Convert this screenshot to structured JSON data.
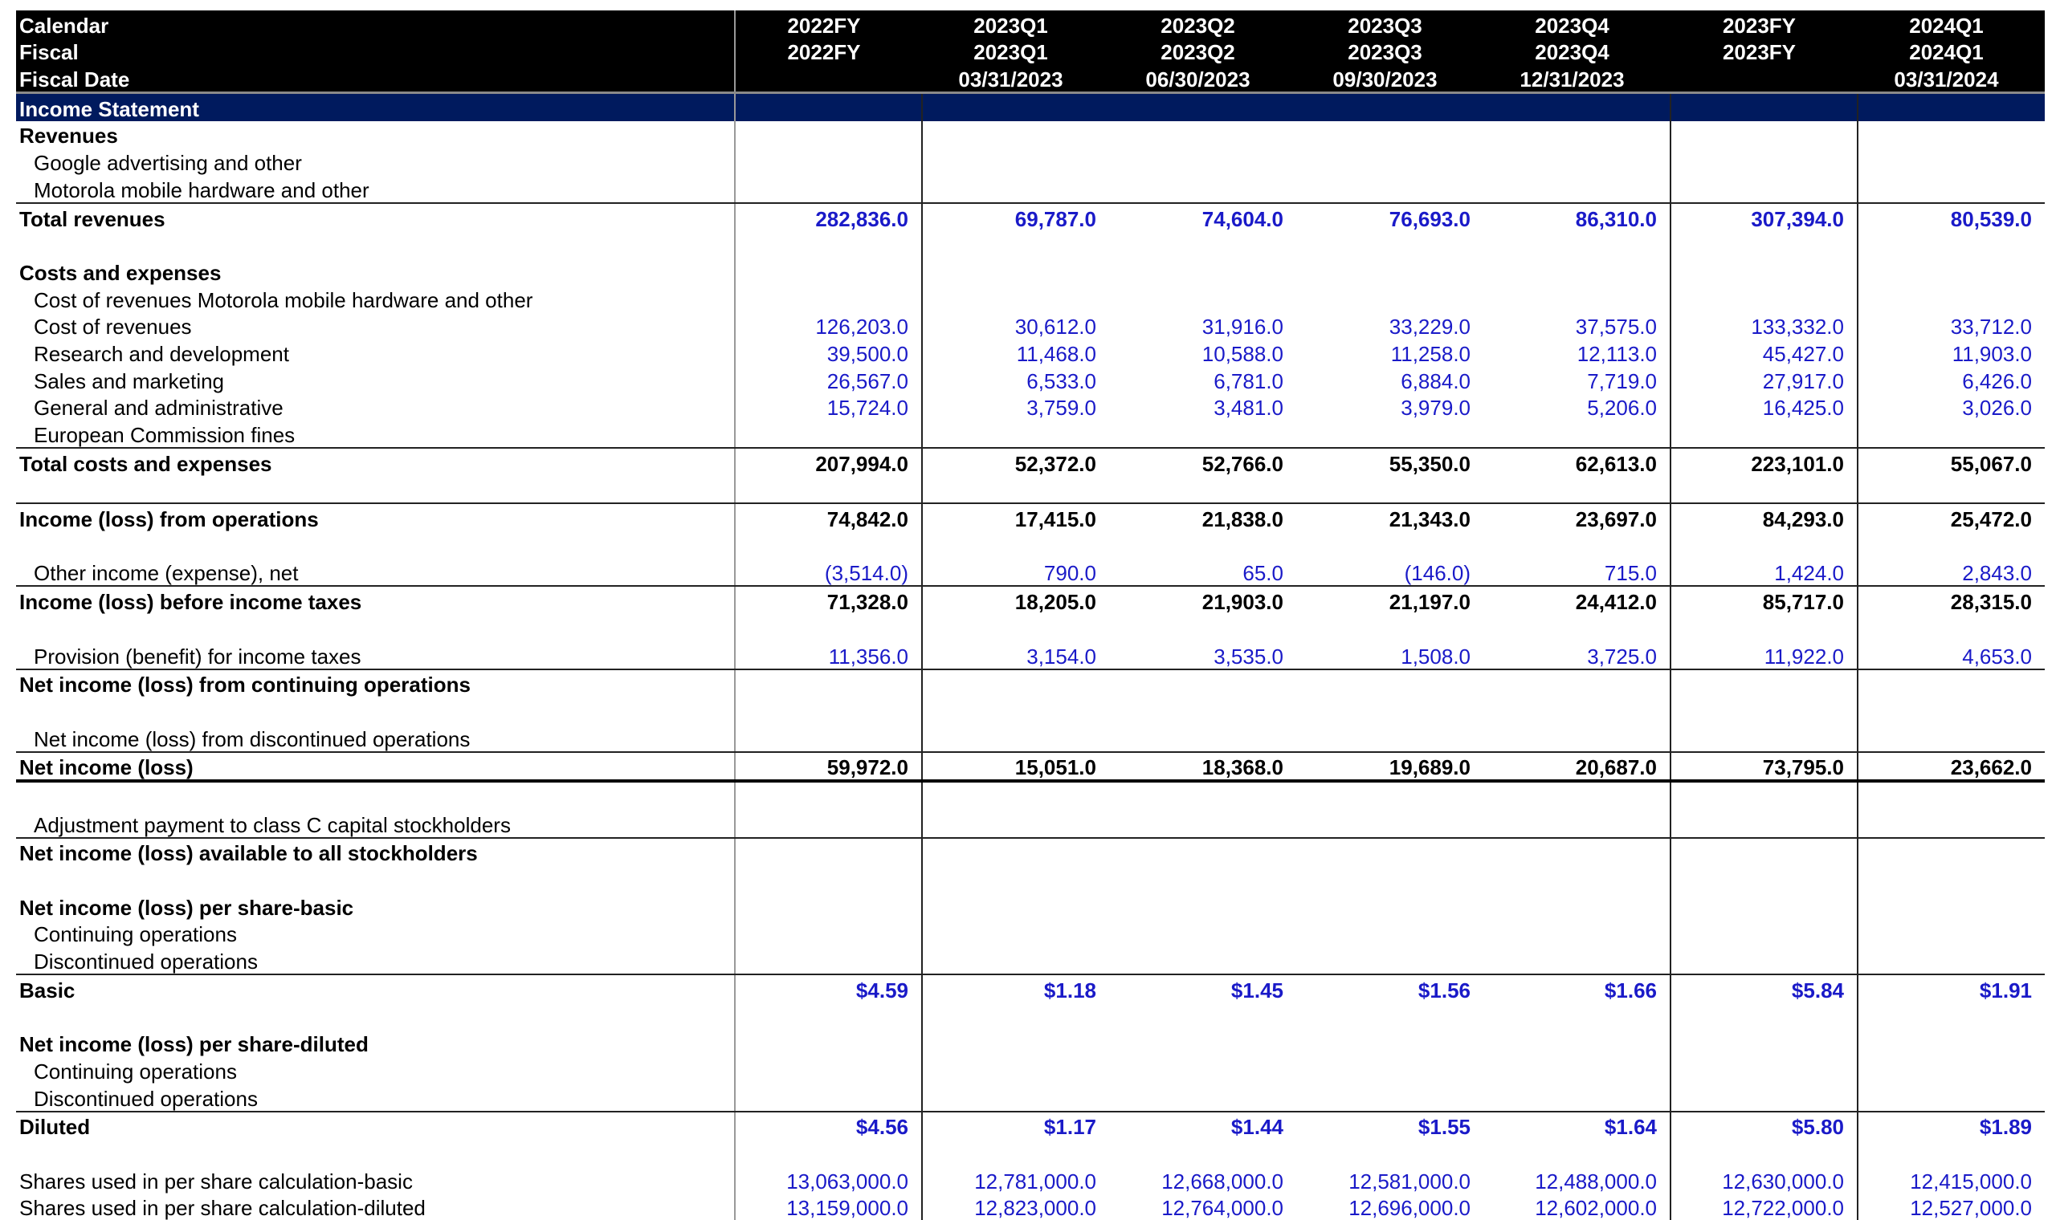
{
  "header": {
    "labels": [
      "Calendar",
      "Fiscal",
      "Fiscal Date"
    ],
    "columns": [
      {
        "calendar": "2022FY",
        "fiscal": "2022FY",
        "date": ""
      },
      {
        "calendar": "2023Q1",
        "fiscal": "2023Q1",
        "date": "03/31/2023"
      },
      {
        "calendar": "2023Q2",
        "fiscal": "2023Q2",
        "date": "06/30/2023"
      },
      {
        "calendar": "2023Q3",
        "fiscal": "2023Q3",
        "date": "09/30/2023"
      },
      {
        "calendar": "2023Q4",
        "fiscal": "2023Q4",
        "date": "12/31/2023"
      },
      {
        "calendar": "2023FY",
        "fiscal": "2023FY",
        "date": ""
      },
      {
        "calendar": "2024Q1",
        "fiscal": "2024Q1",
        "date": "03/31/2024"
      }
    ]
  },
  "section_title": "Income Statement",
  "colors": {
    "value_blue": "#1a1ac8",
    "section_bar": "#001a5e",
    "header_bg": "#000000"
  },
  "rows": [
    {
      "label": "Revenues",
      "bold": true
    },
    {
      "label": "Google advertising and other",
      "indent": true
    },
    {
      "label": "Motorola mobile hardware and other",
      "indent": true,
      "border": "thin"
    },
    {
      "label": "Total revenues",
      "bold": true,
      "style": "blue-bold",
      "values": [
        "282,836.0",
        "69,787.0",
        "74,604.0",
        "76,693.0",
        "86,310.0",
        "307,394.0",
        "80,539.0"
      ]
    },
    {
      "label": ""
    },
    {
      "label": "Costs and expenses",
      "bold": true
    },
    {
      "label": "Cost of revenues Motorola mobile hardware and other",
      "indent": true
    },
    {
      "label": "Cost of revenues",
      "indent": true,
      "style": "blue",
      "values": [
        "126,203.0",
        "30,612.0",
        "31,916.0",
        "33,229.0",
        "37,575.0",
        "133,332.0",
        "33,712.0"
      ]
    },
    {
      "label": "Research and development",
      "indent": true,
      "style": "blue",
      "values": [
        "39,500.0",
        "11,468.0",
        "10,588.0",
        "11,258.0",
        "12,113.0",
        "45,427.0",
        "11,903.0"
      ]
    },
    {
      "label": "Sales and marketing",
      "indent": true,
      "style": "blue",
      "values": [
        "26,567.0",
        "6,533.0",
        "6,781.0",
        "6,884.0",
        "7,719.0",
        "27,917.0",
        "6,426.0"
      ]
    },
    {
      "label": "General and administrative",
      "indent": true,
      "style": "blue",
      "values": [
        "15,724.0",
        "3,759.0",
        "3,481.0",
        "3,979.0",
        "5,206.0",
        "16,425.0",
        "3,026.0"
      ]
    },
    {
      "label": "European Commission fines",
      "indent": true,
      "border": "thin"
    },
    {
      "label": "Total costs and expenses",
      "bold": true,
      "style": "bold",
      "values": [
        "207,994.0",
        "52,372.0",
        "52,766.0",
        "55,350.0",
        "62,613.0",
        "223,101.0",
        "55,067.0"
      ]
    },
    {
      "label": "",
      "border": "thin"
    },
    {
      "label": "Income (loss) from operations",
      "bold": true,
      "style": "bold",
      "values": [
        "74,842.0",
        "17,415.0",
        "21,838.0",
        "21,343.0",
        "23,697.0",
        "84,293.0",
        "25,472.0"
      ]
    },
    {
      "label": ""
    },
    {
      "label": "Other income (expense), net",
      "indent": true,
      "style": "blue",
      "border": "thin",
      "values": [
        "(3,514.0)",
        "790.0",
        "65.0",
        "(146.0)",
        "715.0",
        "1,424.0",
        "2,843.0"
      ]
    },
    {
      "label": "Income (loss) before income taxes",
      "bold": true,
      "style": "bold",
      "values": [
        "71,328.0",
        "18,205.0",
        "21,903.0",
        "21,197.0",
        "24,412.0",
        "85,717.0",
        "28,315.0"
      ]
    },
    {
      "label": ""
    },
    {
      "label": "Provision (benefit) for income taxes",
      "indent": true,
      "style": "blue",
      "border": "thin",
      "values": [
        "11,356.0",
        "3,154.0",
        "3,535.0",
        "1,508.0",
        "3,725.0",
        "11,922.0",
        "4,653.0"
      ]
    },
    {
      "label": "Net income (loss) from continuing operations",
      "bold": true
    },
    {
      "label": ""
    },
    {
      "label": "Net income (loss) from discontinued operations",
      "indent": true,
      "border": "thin"
    },
    {
      "label": "Net income (loss)",
      "bold": true,
      "style": "bold",
      "border": "thick",
      "values": [
        "59,972.0",
        "15,051.0",
        "18,368.0",
        "19,689.0",
        "20,687.0",
        "73,795.0",
        "23,662.0"
      ]
    },
    {
      "label": ""
    },
    {
      "label": "Adjustment payment to class C capital stockholders",
      "indent": true,
      "border": "thin"
    },
    {
      "label": "Net income (loss) available to all stockholders",
      "bold": true
    },
    {
      "label": ""
    },
    {
      "label": "Net income (loss) per share-basic",
      "bold": true
    },
    {
      "label": "Continuing operations",
      "indent": true
    },
    {
      "label": "Discontinued operations",
      "indent": true,
      "border": "thin"
    },
    {
      "label": "Basic",
      "bold": true,
      "style": "blue-bold",
      "values": [
        "$4.59",
        "$1.18",
        "$1.45",
        "$1.56",
        "$1.66",
        "$5.84",
        "$1.91"
      ]
    },
    {
      "label": ""
    },
    {
      "label": "Net income (loss) per share-diluted",
      "bold": true
    },
    {
      "label": "Continuing operations",
      "indent": true
    },
    {
      "label": "Discontinued operations",
      "indent": true,
      "border": "thin"
    },
    {
      "label": "Diluted",
      "bold": true,
      "style": "blue-bold",
      "values": [
        "$4.56",
        "$1.17",
        "$1.44",
        "$1.55",
        "$1.64",
        "$5.80",
        "$1.89"
      ]
    },
    {
      "label": ""
    },
    {
      "label": "Shares used in per share calculation-basic",
      "style": "blue",
      "values": [
        "13,063,000.0",
        "12,781,000.0",
        "12,668,000.0",
        "12,581,000.0",
        "12,488,000.0",
        "12,630,000.0",
        "12,415,000.0"
      ]
    },
    {
      "label": "Shares used in per share calculation-diluted",
      "style": "blue",
      "values": [
        "13,159,000.0",
        "12,823,000.0",
        "12,764,000.0",
        "12,696,000.0",
        "12,602,000.0",
        "12,722,000.0",
        "12,527,000.0"
      ]
    }
  ]
}
